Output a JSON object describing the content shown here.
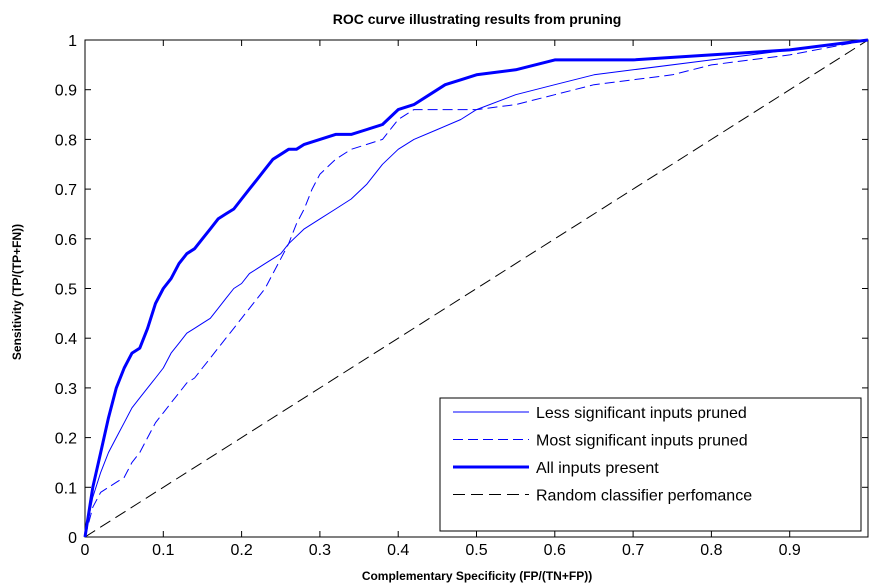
{
  "chart_data": {
    "type": "line",
    "title": "ROC curve illustrating results from pruning",
    "xlabel": "Complementary Specificity (FP/(TN+FP))",
    "ylabel": "Sensitivity (TP/(TP+FN))",
    "xlim": [
      0,
      1
    ],
    "ylim": [
      0,
      1
    ],
    "xticks": [
      "0",
      "0.1",
      "0.2",
      "0.3",
      "0.4",
      "0.5",
      "0.6",
      "0.7",
      "0.8",
      "0.9"
    ],
    "yticks": [
      "0",
      "0.1",
      "0.2",
      "0.3",
      "0.4",
      "0.5",
      "0.6",
      "0.7",
      "0.8",
      "0.9",
      "1"
    ],
    "grid": false,
    "legend_position": "bottom-right",
    "series": [
      {
        "name": "Less significant inputs pruned",
        "style": "solid-thin",
        "color": "#0000ff",
        "x": [
          0,
          0.005,
          0.01,
          0.02,
          0.03,
          0.04,
          0.05,
          0.06,
          0.07,
          0.08,
          0.09,
          0.1,
          0.11,
          0.12,
          0.13,
          0.14,
          0.15,
          0.16,
          0.17,
          0.18,
          0.19,
          0.2,
          0.21,
          0.22,
          0.23,
          0.24,
          0.25,
          0.26,
          0.28,
          0.3,
          0.32,
          0.34,
          0.36,
          0.38,
          0.4,
          0.42,
          0.45,
          0.48,
          0.5,
          0.55,
          0.6,
          0.65,
          0.7,
          0.8,
          0.9,
          1.0
        ],
        "y": [
          0,
          0.04,
          0.08,
          0.13,
          0.17,
          0.2,
          0.23,
          0.26,
          0.28,
          0.3,
          0.32,
          0.34,
          0.37,
          0.39,
          0.41,
          0.42,
          0.43,
          0.44,
          0.46,
          0.48,
          0.5,
          0.51,
          0.53,
          0.54,
          0.55,
          0.56,
          0.57,
          0.59,
          0.62,
          0.64,
          0.66,
          0.68,
          0.71,
          0.75,
          0.78,
          0.8,
          0.82,
          0.84,
          0.86,
          0.89,
          0.91,
          0.93,
          0.94,
          0.96,
          0.98,
          1.0
        ]
      },
      {
        "name": "Most significant inputs pruned",
        "style": "dashed-thin",
        "color": "#0000ff",
        "x": [
          0,
          0.005,
          0.01,
          0.02,
          0.03,
          0.04,
          0.05,
          0.06,
          0.07,
          0.08,
          0.09,
          0.1,
          0.11,
          0.12,
          0.13,
          0.14,
          0.15,
          0.16,
          0.17,
          0.18,
          0.19,
          0.2,
          0.21,
          0.22,
          0.23,
          0.24,
          0.25,
          0.26,
          0.27,
          0.28,
          0.29,
          0.3,
          0.32,
          0.34,
          0.36,
          0.38,
          0.4,
          0.42,
          0.45,
          0.5,
          0.55,
          0.6,
          0.65,
          0.7,
          0.75,
          0.8,
          0.9,
          1.0
        ],
        "y": [
          0,
          0.03,
          0.06,
          0.09,
          0.1,
          0.11,
          0.12,
          0.15,
          0.17,
          0.2,
          0.23,
          0.25,
          0.27,
          0.29,
          0.31,
          0.32,
          0.34,
          0.36,
          0.38,
          0.4,
          0.42,
          0.44,
          0.46,
          0.48,
          0.5,
          0.53,
          0.56,
          0.59,
          0.63,
          0.66,
          0.7,
          0.73,
          0.76,
          0.78,
          0.79,
          0.8,
          0.84,
          0.86,
          0.86,
          0.86,
          0.87,
          0.89,
          0.91,
          0.92,
          0.93,
          0.95,
          0.97,
          1.0
        ]
      },
      {
        "name": "All inputs present",
        "style": "solid-thick",
        "color": "#0000ff",
        "x": [
          0,
          0.005,
          0.01,
          0.02,
          0.03,
          0.04,
          0.05,
          0.06,
          0.07,
          0.08,
          0.09,
          0.1,
          0.11,
          0.12,
          0.13,
          0.14,
          0.15,
          0.16,
          0.17,
          0.18,
          0.19,
          0.2,
          0.21,
          0.22,
          0.23,
          0.24,
          0.25,
          0.26,
          0.27,
          0.28,
          0.3,
          0.32,
          0.34,
          0.36,
          0.38,
          0.4,
          0.42,
          0.44,
          0.46,
          0.48,
          0.5,
          0.55,
          0.6,
          0.65,
          0.7,
          0.8,
          0.9,
          1.0
        ],
        "y": [
          0,
          0.05,
          0.1,
          0.17,
          0.24,
          0.3,
          0.34,
          0.37,
          0.38,
          0.42,
          0.47,
          0.5,
          0.52,
          0.55,
          0.57,
          0.58,
          0.6,
          0.62,
          0.64,
          0.65,
          0.66,
          0.68,
          0.7,
          0.72,
          0.74,
          0.76,
          0.77,
          0.78,
          0.78,
          0.79,
          0.8,
          0.81,
          0.81,
          0.82,
          0.83,
          0.86,
          0.87,
          0.89,
          0.91,
          0.92,
          0.93,
          0.94,
          0.96,
          0.96,
          0.96,
          0.97,
          0.98,
          1.0
        ]
      },
      {
        "name": "Random classifier perfomance",
        "style": "dashed-black",
        "color": "#000000",
        "x": [
          0,
          1
        ],
        "y": [
          0,
          1
        ]
      }
    ]
  }
}
